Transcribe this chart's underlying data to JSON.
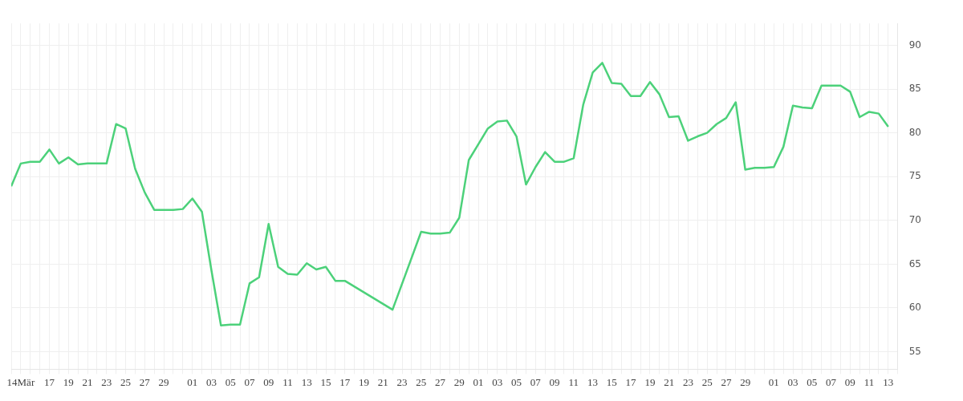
{
  "chart_data": {
    "type": "line",
    "x": [
      "--03-13",
      "--03-14",
      "--03-15",
      "--03-16",
      "--03-17",
      "--03-18",
      "--03-19",
      "--03-20",
      "--03-21",
      "--03-22",
      "--03-23",
      "--03-24",
      "--03-25",
      "--03-26",
      "--03-27",
      "--03-28",
      "--03-29",
      "--03-30",
      "--03-31",
      "--04-01",
      "--04-02",
      "--04-03",
      "--04-04",
      "--04-05",
      "--04-06",
      "--04-07",
      "--04-08",
      "--04-09",
      "--04-10",
      "--04-11",
      "--04-12",
      "--04-13",
      "--04-14",
      "--04-15",
      "--04-16",
      "--04-17",
      "--04-22",
      "--04-25",
      "--04-26",
      "--04-27",
      "--04-28",
      "--04-29",
      "--04-30",
      "--05-01",
      "--05-02",
      "--05-03",
      "--05-04",
      "--05-05",
      "--05-06",
      "--05-07",
      "--05-08",
      "--05-09",
      "--05-10",
      "--05-11",
      "--05-12",
      "--05-13",
      "--05-14",
      "--05-15",
      "--05-16",
      "--05-17",
      "--05-18",
      "--05-19",
      "--05-20",
      "--05-21",
      "--05-22",
      "--05-23",
      "--05-24",
      "--05-25",
      "--05-26",
      "--05-27",
      "--05-28",
      "--05-29",
      "--05-30",
      "--05-31",
      "--06-01",
      "--06-02",
      "--06-03",
      "--06-04",
      "--06-05",
      "--06-06",
      "--06-07",
      "--06-08",
      "--06-09",
      "--06-10",
      "--06-11",
      "--06-12",
      "--06-13"
    ],
    "series": [
      {
        "color": "#4cd17a",
        "values": [
          73.9,
          76.5,
          76.7,
          76.7,
          78.1,
          76.5,
          77.2,
          76.4,
          76.5,
          76.5,
          76.5,
          81.0,
          80.5,
          75.9,
          73.2,
          71.2,
          71.2,
          71.2,
          71.3,
          72.5,
          71.0,
          64.3,
          58.0,
          58.1,
          58.1,
          62.8,
          63.5,
          69.6,
          64.7,
          63.9,
          63.8,
          65.1,
          64.4,
          64.7,
          63.1,
          63.1,
          59.8,
          68.7,
          68.5,
          68.5,
          68.6,
          70.3,
          76.9,
          78.7,
          80.5,
          81.3,
          81.4,
          79.6,
          74.1,
          76.1,
          77.8,
          76.7,
          76.7,
          77.1,
          83.2,
          86.9,
          88.0,
          85.7,
          85.6,
          84.2,
          84.2,
          85.8,
          84.4,
          81.8,
          81.9,
          79.1,
          79.6,
          80.0,
          81.0,
          81.7,
          83.5,
          75.8,
          76.0,
          76.0,
          76.1,
          78.4,
          83.1,
          82.9,
          82.8,
          85.4,
          85.4,
          85.4,
          84.7,
          81.8,
          82.4,
          82.2,
          80.7
        ]
      }
    ],
    "xlim": [
      "--03-13",
      "--06-14"
    ],
    "xticks": [
      {
        "value": "--03-13",
        "label": null
      },
      {
        "value": "--03-14",
        "label": "14Mär"
      },
      {
        "value": "--03-15",
        "label": null
      },
      {
        "value": "--03-16",
        "label": null
      },
      {
        "value": "--03-17",
        "label": "17"
      },
      {
        "value": "--03-18",
        "label": null
      },
      {
        "value": "--03-19",
        "label": "19"
      },
      {
        "value": "--03-20",
        "label": null
      },
      {
        "value": "--03-21",
        "label": "21"
      },
      {
        "value": "--03-22",
        "label": null
      },
      {
        "value": "--03-23",
        "label": "23"
      },
      {
        "value": "--03-24",
        "label": null
      },
      {
        "value": "--03-25",
        "label": "25"
      },
      {
        "value": "--03-26",
        "label": null
      },
      {
        "value": "--03-27",
        "label": "27"
      },
      {
        "value": "--03-28",
        "label": null
      },
      {
        "value": "--03-29",
        "label": "29"
      },
      {
        "value": "--03-30",
        "label": null
      },
      {
        "value": "--03-31",
        "label": null
      },
      {
        "value": "--04-01",
        "label": "01"
      },
      {
        "value": "--04-02",
        "label": null
      },
      {
        "value": "--04-03",
        "label": "03"
      },
      {
        "value": "--04-04",
        "label": null
      },
      {
        "value": "--04-05",
        "label": "05"
      },
      {
        "value": "--04-06",
        "label": null
      },
      {
        "value": "--04-07",
        "label": "07"
      },
      {
        "value": "--04-08",
        "label": null
      },
      {
        "value": "--04-09",
        "label": "09"
      },
      {
        "value": "--04-10",
        "label": null
      },
      {
        "value": "--04-11",
        "label": "11"
      },
      {
        "value": "--04-12",
        "label": null
      },
      {
        "value": "--04-13",
        "label": "13"
      },
      {
        "value": "--04-14",
        "label": null
      },
      {
        "value": "--04-15",
        "label": "15"
      },
      {
        "value": "--04-16",
        "label": null
      },
      {
        "value": "--04-17",
        "label": "17"
      },
      {
        "value": "--04-18",
        "label": null
      },
      {
        "value": "--04-19",
        "label": "19"
      },
      {
        "value": "--04-20",
        "label": null
      },
      {
        "value": "--04-21",
        "label": "21"
      },
      {
        "value": "--04-22",
        "label": null
      },
      {
        "value": "--04-23",
        "label": "23"
      },
      {
        "value": "--04-24",
        "label": null
      },
      {
        "value": "--04-25",
        "label": "25"
      },
      {
        "value": "--04-26",
        "label": null
      },
      {
        "value": "--04-27",
        "label": "27"
      },
      {
        "value": "--04-28",
        "label": null
      },
      {
        "value": "--04-29",
        "label": "29"
      },
      {
        "value": "--04-30",
        "label": null
      },
      {
        "value": "--05-01",
        "label": "01"
      },
      {
        "value": "--05-02",
        "label": null
      },
      {
        "value": "--05-03",
        "label": "03"
      },
      {
        "value": "--05-04",
        "label": null
      },
      {
        "value": "--05-05",
        "label": "05"
      },
      {
        "value": "--05-06",
        "label": null
      },
      {
        "value": "--05-07",
        "label": "07"
      },
      {
        "value": "--05-08",
        "label": null
      },
      {
        "value": "--05-09",
        "label": "09"
      },
      {
        "value": "--05-10",
        "label": null
      },
      {
        "value": "--05-11",
        "label": "11"
      },
      {
        "value": "--05-12",
        "label": null
      },
      {
        "value": "--05-13",
        "label": "13"
      },
      {
        "value": "--05-14",
        "label": null
      },
      {
        "value": "--05-15",
        "label": "15"
      },
      {
        "value": "--05-16",
        "label": null
      },
      {
        "value": "--05-17",
        "label": "17"
      },
      {
        "value": "--05-18",
        "label": null
      },
      {
        "value": "--05-19",
        "label": "19"
      },
      {
        "value": "--05-20",
        "label": null
      },
      {
        "value": "--05-21",
        "label": "21"
      },
      {
        "value": "--05-22",
        "label": null
      },
      {
        "value": "--05-23",
        "label": "23"
      },
      {
        "value": "--05-24",
        "label": null
      },
      {
        "value": "--05-25",
        "label": "25"
      },
      {
        "value": "--05-26",
        "label": null
      },
      {
        "value": "--05-27",
        "label": "27"
      },
      {
        "value": "--05-28",
        "label": null
      },
      {
        "value": "--05-29",
        "label": "29"
      },
      {
        "value": "--05-30",
        "label": null
      },
      {
        "value": "--05-31",
        "label": null
      },
      {
        "value": "--06-01",
        "label": "01"
      },
      {
        "value": "--06-02",
        "label": null
      },
      {
        "value": "--06-03",
        "label": "03"
      },
      {
        "value": "--06-04",
        "label": null
      },
      {
        "value": "--06-05",
        "label": "05"
      },
      {
        "value": "--06-06",
        "label": null
      },
      {
        "value": "--06-07",
        "label": "07"
      },
      {
        "value": "--06-08",
        "label": null
      },
      {
        "value": "--06-09",
        "label": "09"
      },
      {
        "value": "--06-10",
        "label": null
      },
      {
        "value": "--06-11",
        "label": "11"
      },
      {
        "value": "--06-12",
        "label": null
      },
      {
        "value": "--06-13",
        "label": "13"
      },
      {
        "value": "--06-14",
        "label": null
      }
    ],
    "ylim": [
      53,
      92.5
    ],
    "yticks": [
      55,
      60,
      65,
      70,
      75,
      80,
      85,
      90
    ],
    "grid": true,
    "legend": false,
    "marker": "none",
    "line_style": "solid"
  }
}
